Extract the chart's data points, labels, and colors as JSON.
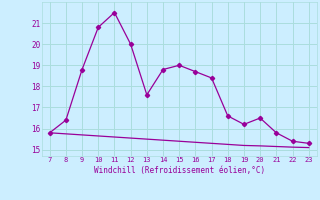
{
  "x": [
    7,
    8,
    9,
    10,
    11,
    12,
    13,
    14,
    15,
    16,
    17,
    18,
    19,
    20,
    21,
    22,
    23
  ],
  "y_main": [
    15.8,
    16.4,
    18.8,
    20.8,
    21.5,
    20.0,
    17.6,
    18.8,
    19.0,
    18.7,
    18.4,
    16.6,
    16.2,
    16.5,
    15.8,
    15.4,
    15.3
  ],
  "y_flat": [
    15.8,
    15.75,
    15.7,
    15.65,
    15.6,
    15.55,
    15.5,
    15.45,
    15.4,
    15.35,
    15.3,
    15.25,
    15.2,
    15.18,
    15.15,
    15.12,
    15.1
  ],
  "line_color": "#990099",
  "bg_color": "#cceeff",
  "grid_color": "#aadddd",
  "xlabel": "Windchill (Refroidissement éolien,°C)",
  "xlabel_color": "#990099",
  "tick_color": "#990099",
  "yticks": [
    15,
    16,
    17,
    18,
    19,
    20,
    21
  ],
  "xticks": [
    7,
    8,
    9,
    10,
    11,
    12,
    13,
    14,
    15,
    16,
    17,
    18,
    19,
    20,
    21,
    22,
    23
  ],
  "xlim": [
    6.5,
    23.5
  ],
  "ylim": [
    14.7,
    22.0
  ]
}
